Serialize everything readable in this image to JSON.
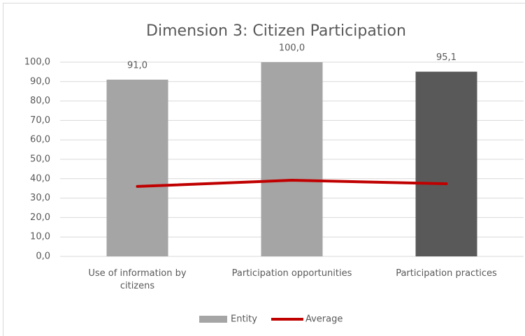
{
  "chart_data": {
    "type": "bar",
    "title": "Dimension 3: Citizen Participation",
    "categories": [
      "Use of information by citizens",
      "Participation opportunities",
      "Participation practices"
    ],
    "series": [
      {
        "name": "Entity",
        "type": "bar",
        "color": "#a5a5a5",
        "colors": [
          "#a5a5a5",
          "#a5a5a5",
          "#595959"
        ],
        "values": [
          91.0,
          100.0,
          95.1
        ],
        "value_labels": [
          "91,0",
          "100,0",
          "95,1"
        ]
      },
      {
        "name": "Average",
        "type": "line",
        "color": "#c00000",
        "values": [
          36.0,
          39.2,
          37.4
        ]
      }
    ],
    "ylim": [
      0,
      100
    ],
    "yticks": [
      {
        "value": 0,
        "label": "0,0"
      },
      {
        "value": 10,
        "label": "10,0"
      },
      {
        "value": 20,
        "label": "20,0"
      },
      {
        "value": 30,
        "label": "30,0"
      },
      {
        "value": 40,
        "label": "40,0"
      },
      {
        "value": 50,
        "label": "50,0"
      },
      {
        "value": 60,
        "label": "60,0"
      },
      {
        "value": 70,
        "label": "70,0"
      },
      {
        "value": 80,
        "label": "80,0"
      },
      {
        "value": 90,
        "label": "90,0"
      },
      {
        "value": 100,
        "label": "100,0"
      }
    ],
    "grid": true,
    "legend": "bottom"
  }
}
